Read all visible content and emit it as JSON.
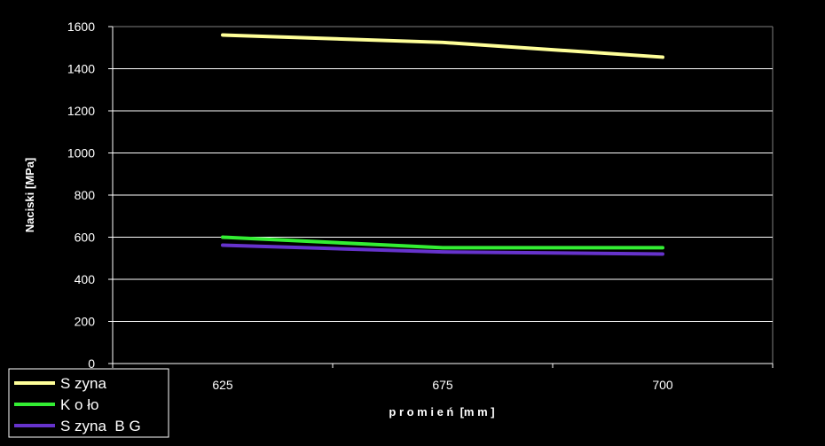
{
  "chart_data": {
    "type": "line",
    "title": "",
    "xlabel": "p r o m i e ń  [m m ]",
    "ylabel": "Naciski [MPa]",
    "categories": [
      "625",
      "675",
      "700"
    ],
    "ylim": [
      0,
      1600
    ],
    "yticks": [
      0,
      200,
      400,
      600,
      800,
      1000,
      1200,
      1400,
      1600
    ],
    "grid": true,
    "legend_position": "bottom-left",
    "series": [
      {
        "name": "S zyna",
        "color": "#ffff99",
        "values": [
          1560,
          1525,
          1455
        ]
      },
      {
        "name": "K o ło",
        "color": "#33ee33",
        "values": [
          600,
          550,
          550
        ]
      },
      {
        "name": "S zyna  B G",
        "color": "#6633cc",
        "values": [
          562,
          530,
          520
        ]
      }
    ]
  },
  "colors": {
    "background": "#000000",
    "axis": "#ffffff",
    "grid": "#ffffff",
    "text": "#ffffff"
  }
}
